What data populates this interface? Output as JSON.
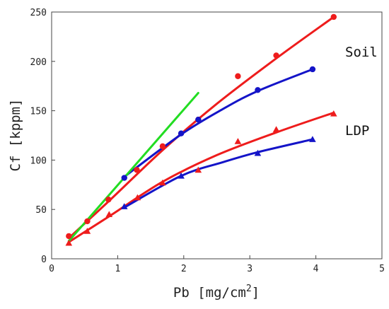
{
  "chart_data": {
    "type": "scatter",
    "xlabel_base": "Pb [mg/cm",
    "xlabel_sup": "2",
    "xlabel_end": "]",
    "ylabel": "Cf [kppm]",
    "xlim": [
      0,
      5
    ],
    "ylim": [
      0,
      250
    ],
    "xticks": [
      0,
      1,
      2,
      3,
      4,
      5
    ],
    "yticks": [
      0,
      50,
      100,
      150,
      200,
      250
    ],
    "grid": false,
    "colors": {
      "red": "#ee1c1c",
      "blue": "#1414c8",
      "green": "#22dd22"
    },
    "annotations": [
      {
        "text": "Soil",
        "x": 4.5,
        "y": 207
      },
      {
        "text": "LDP",
        "x": 4.5,
        "y": 128
      }
    ],
    "series": [
      {
        "marker": "circle",
        "color": "#ee1c1c",
        "points": [
          [
            0.26,
            23
          ],
          [
            0.54,
            38
          ],
          [
            0.86,
            60
          ],
          [
            1.29,
            90
          ],
          [
            1.68,
            114
          ],
          [
            2.22,
            141
          ],
          [
            2.82,
            185
          ],
          [
            3.4,
            206
          ],
          [
            4.27,
            245
          ]
        ]
      },
      {
        "marker": "circle",
        "color": "#1414c8",
        "points": [
          [
            1.1,
            82
          ],
          [
            1.96,
            127
          ],
          [
            2.22,
            141
          ],
          [
            3.12,
            171
          ],
          [
            3.95,
            192
          ]
        ]
      },
      {
        "marker": "triangle",
        "color": "#ee1c1c",
        "points": [
          [
            0.26,
            16
          ],
          [
            0.54,
            28
          ],
          [
            0.87,
            45
          ],
          [
            1.3,
            62
          ],
          [
            1.68,
            77
          ],
          [
            2.22,
            90
          ],
          [
            2.82,
            119
          ],
          [
            3.4,
            131
          ],
          [
            4.27,
            147
          ]
        ]
      },
      {
        "marker": "triangle",
        "color": "#1414c8",
        "points": [
          [
            1.1,
            53
          ],
          [
            1.96,
            84
          ],
          [
            3.12,
            107
          ],
          [
            3.95,
            121
          ]
        ]
      }
    ],
    "lines": [
      {
        "color": "#ee1c1c",
        "points": [
          [
            0.26,
            21
          ],
          [
            0.86,
            58
          ],
          [
            1.68,
            110
          ],
          [
            2.5,
            157
          ],
          [
            3.4,
            203
          ],
          [
            4.27,
            245
          ]
        ]
      },
      {
        "color": "#1414c8",
        "points": [
          [
            1.1,
            83
          ],
          [
            1.96,
            126
          ],
          [
            2.6,
            152
          ],
          [
            3.12,
            170
          ],
          [
            3.95,
            192
          ]
        ]
      },
      {
        "color": "#ee1c1c",
        "points": [
          [
            0.26,
            17
          ],
          [
            0.87,
            43
          ],
          [
            1.68,
            78
          ],
          [
            2.5,
            105
          ],
          [
            3.4,
            128
          ],
          [
            4.27,
            148
          ]
        ]
      },
      {
        "color": "#1414c8",
        "points": [
          [
            1.1,
            52
          ],
          [
            1.96,
            84
          ],
          [
            2.6,
            98
          ],
          [
            3.12,
            108
          ],
          [
            3.95,
            121
          ]
        ]
      },
      {
        "color": "#22dd22",
        "points": [
          [
            0.26,
            18
          ],
          [
            2.22,
            168
          ]
        ]
      }
    ]
  }
}
